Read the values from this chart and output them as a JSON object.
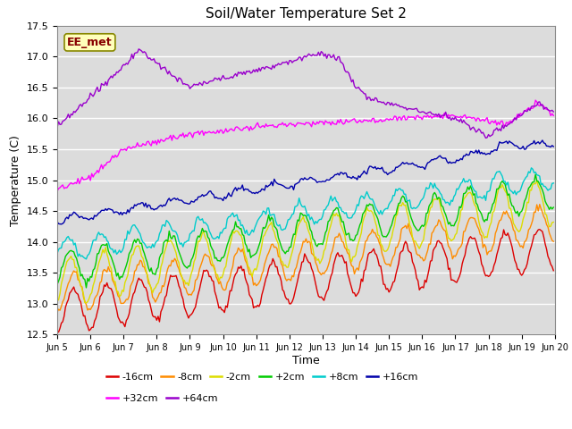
{
  "title": "Soil/Water Temperature Set 2",
  "xlabel": "Time",
  "ylabel": "Temperature (C)",
  "ylim": [
    12.5,
    17.5
  ],
  "xlim": [
    0,
    360
  ],
  "bg_color": "#dcdcdc",
  "series_order": [
    "-16cm",
    "-8cm",
    "-2cm",
    "+2cm",
    "+8cm",
    "+16cm",
    "+32cm",
    "+64cm"
  ],
  "series": {
    "-16cm": {
      "color": "#dd0000",
      "base_start": 12.88,
      "base_end": 13.9,
      "amp": 0.35,
      "period": 24,
      "phase": 0.5
    },
    "-8cm": {
      "color": "#ff8c00",
      "base_start": 13.15,
      "base_end": 14.3,
      "amp": 0.3,
      "period": 24,
      "phase": 0.5
    },
    "-2cm": {
      "color": "#dddd00",
      "base_start": 13.35,
      "base_end": 14.65,
      "amp": 0.38,
      "period": 24,
      "phase": 0.3
    },
    "+2cm": {
      "color": "#00cc00",
      "base_start": 13.55,
      "base_end": 14.8,
      "amp": 0.28,
      "period": 24,
      "phase": 0.3
    },
    "+8cm": {
      "color": "#00cccc",
      "base_start": 13.85,
      "base_end": 15.05,
      "amp": 0.18,
      "period": 24,
      "phase": 0.1
    },
    "+16cm": {
      "color": "#0000aa",
      "base_start": 14.35,
      "base_end": 15.55,
      "amp": 0.06,
      "period": 48,
      "phase": 0.0
    },
    "+32cm": {
      "color": "#ff00ff",
      "base_start": 14.85,
      "base_end": 16.05,
      "amp": 0.08,
      "period": 96,
      "phase": 0.0
    },
    "+64cm": {
      "color": "#9900cc",
      "base_start": 15.85,
      "base_end": 15.55,
      "amp": 0.15,
      "period": 192,
      "phase": 0.0
    }
  },
  "xtick_labels": [
    "Jun 5",
    "Jun 6",
    "Jun 7",
    "Jun 8",
    "Jun 9",
    "Jun 10",
    "Jun 11",
    "Jun 12",
    "Jun 13",
    "Jun 14",
    "Jun 15",
    "Jun 16",
    "Jun 17",
    "Jun 18",
    "Jun 19",
    "Jun 20"
  ],
  "xtick_positions": [
    0,
    24,
    48,
    72,
    96,
    120,
    144,
    168,
    192,
    216,
    240,
    264,
    288,
    312,
    336,
    360
  ],
  "ytick_labels": [
    "12.5",
    "13.0",
    "13.5",
    "14.0",
    "14.5",
    "15.0",
    "15.5",
    "16.0",
    "16.5",
    "17.0",
    "17.5"
  ],
  "ytick_positions": [
    12.5,
    13.0,
    13.5,
    14.0,
    14.5,
    15.0,
    15.5,
    16.0,
    16.5,
    17.0,
    17.5
  ],
  "annotation_text": "EE_met",
  "legend_ncol_row1": 6,
  "legend_row1": [
    "-16cm",
    "-8cm",
    "-2cm",
    "+2cm",
    "+8cm",
    "+16cm"
  ],
  "legend_row2": [
    "+32cm",
    "+64cm"
  ]
}
